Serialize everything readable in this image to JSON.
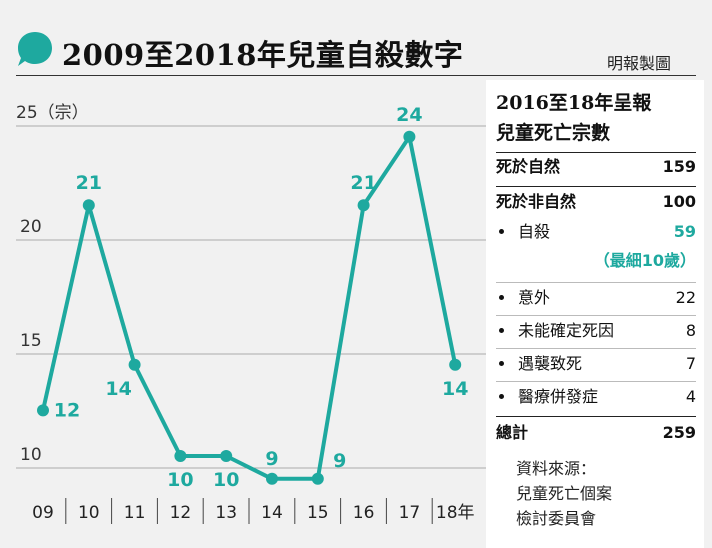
{
  "header": {
    "title": "2009至2018年兒童自殺數字",
    "source": "明報製圖",
    "bubble_color": "#1ea99f"
  },
  "chart_data": {
    "type": "line",
    "y_unit_label": "25（宗）",
    "categories": [
      "09",
      "10",
      "11",
      "12",
      "13",
      "14",
      "15",
      "16",
      "17",
      "18年"
    ],
    "values": [
      12,
      21,
      14,
      10,
      10,
      9,
      9,
      21,
      24,
      14
    ],
    "yticks": [
      "20",
      "15",
      "10"
    ],
    "ytick_values": [
      20,
      15,
      10
    ],
    "ylim": [
      8.5,
      25
    ],
    "grid": true,
    "line_color": "#1ea99f"
  },
  "panel": {
    "title_line1": "2016至18年呈報",
    "title_line2": "兒童死亡宗數",
    "natural_label": "死於自然",
    "natural_value": "159",
    "unnatural_label": "死於非自然",
    "unnatural_value": "100",
    "items": [
      {
        "label": "自殺",
        "value": "59"
      },
      {
        "label": "意外",
        "value": "22"
      },
      {
        "label": "未能確定死因",
        "value": "8"
      },
      {
        "label": "遇襲致死",
        "value": "7"
      },
      {
        "label": "醫療併發症",
        "value": "4"
      }
    ],
    "suicide_note": "（最細10歲）",
    "total_label": "總計",
    "total_value": "259",
    "source_line1": "資料來源：",
    "source_line2": "兒童死亡個案",
    "source_line3": "檢討委員會"
  }
}
